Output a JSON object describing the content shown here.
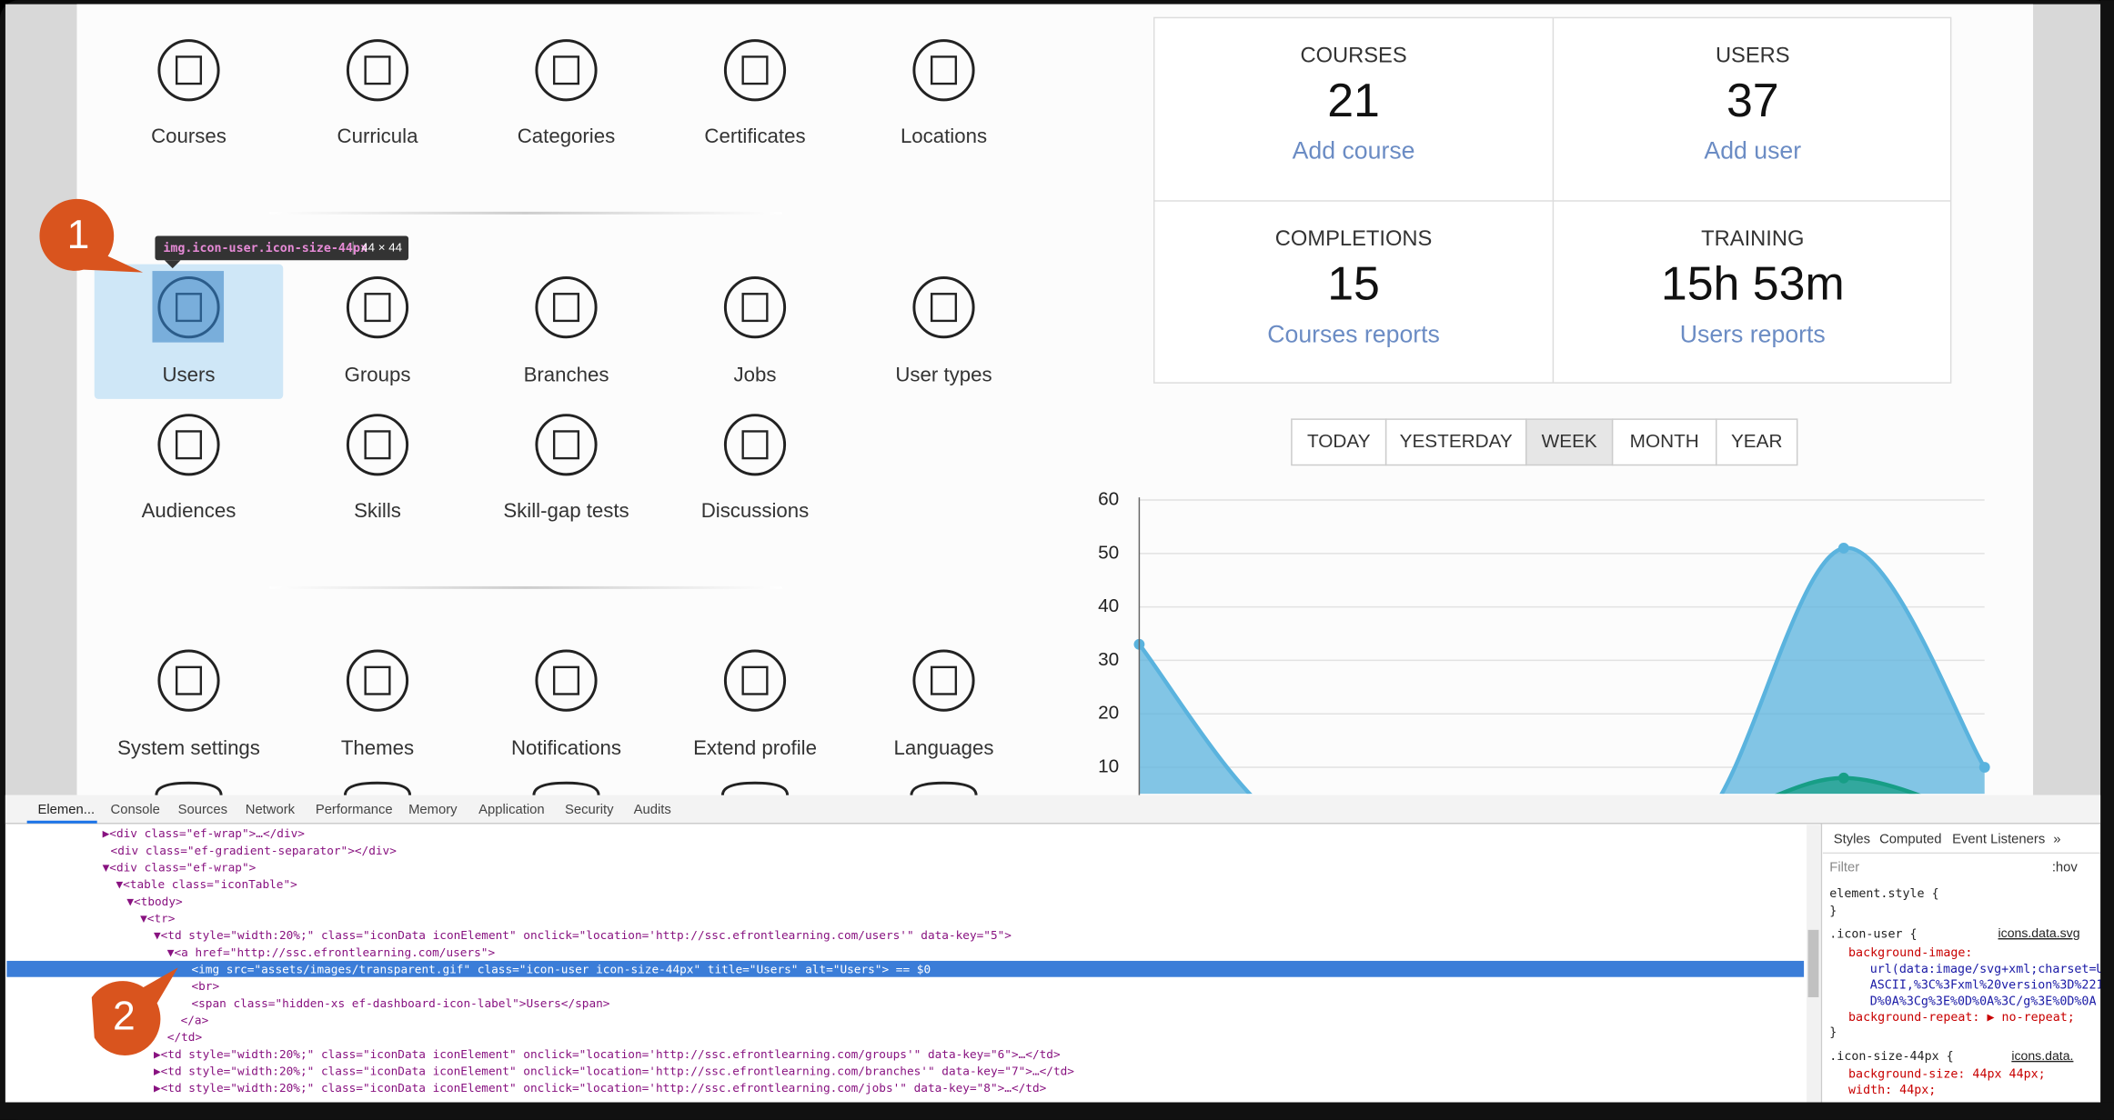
{
  "icon_grid": {
    "rows": [
      [
        "Courses",
        "Curricula",
        "Categories",
        "Certificates",
        "Locations"
      ],
      [
        "Users",
        "Groups",
        "Branches",
        "Jobs",
        "User types"
      ],
      [
        "Audiences",
        "Skills",
        "Skill-gap tests",
        "Discussions"
      ],
      [
        "System settings",
        "Themes",
        "Notifications",
        "Extend profile",
        "Languages"
      ]
    ]
  },
  "tooltip": {
    "selector": "img.icon-user.icon-size-44px",
    "size": "44 × 44"
  },
  "markers": [
    "1",
    "2"
  ],
  "stats": [
    {
      "label": "COURSES",
      "value": "21",
      "link": "Add course"
    },
    {
      "label": "USERS",
      "value": "37",
      "link": "Add user"
    },
    {
      "label": "COMPLETIONS",
      "value": "15",
      "link": "Courses reports"
    },
    {
      "label": "TRAINING",
      "value": "15h 53m",
      "link": "Users reports"
    }
  ],
  "periods": {
    "options": [
      "TODAY",
      "YESTERDAY",
      "WEEK",
      "MONTH",
      "YEAR"
    ],
    "active": 2
  },
  "chart_data": {
    "type": "area",
    "categories": [
      null,
      null,
      null,
      null,
      null,
      null,
      null
    ],
    "series": [
      {
        "color": "#5ab3de",
        "values": [
          33,
          0,
          0,
          0,
          0,
          51,
          10
        ]
      },
      {
        "color": "#179e86",
        "values": [
          0,
          0,
          0,
          0,
          0,
          8,
          0
        ]
      }
    ],
    "ylim": [
      0,
      60
    ],
    "yticks": [
      10,
      20,
      30,
      40,
      50,
      60
    ],
    "grid": true
  },
  "devtools": {
    "tabs": [
      "Elemen...",
      "Console",
      "Sources",
      "Network",
      "Performance",
      "Memory",
      "Application",
      "Security",
      "Audits"
    ],
    "dom_lines": [
      "▶<div class=\"ef-wrap\">…</div>",
      "<div class=\"ef-gradient-separator\"></div>",
      "▼<div class=\"ef-wrap\">",
      "▼<table class=\"iconTable\">",
      "▼<tbody>",
      "▼<tr>",
      "▼<td style=\"width:20%;\" class=\"iconData iconElement\" onclick=\"location='http://ssc.efrontlearning.com/users'\" data-key=\"5\">",
      "▼<a href=\"http://ssc.efrontlearning.com/users\">",
      "<img src=\"assets/images/transparent.gif\" class=\"icon-user icon-size-44px\" title=\"Users\" alt=\"Users\"> == $0",
      "<br>",
      "<span class=\"hidden-xs ef-dashboard-icon-label\">Users</span>",
      "</a>",
      "</td>",
      "▶<td style=\"width:20%;\" class=\"iconData iconElement\" onclick=\"location='http://ssc.efrontlearning.com/groups'\" data-key=\"6\">…</td>",
      "▶<td style=\"width:20%;\" class=\"iconData iconElement\" onclick=\"location='http://ssc.efrontlearning.com/branches'\" data-key=\"7\">…</td>",
      "▶<td style=\"width:20%;\" class=\"iconData iconElement\" onclick=\"location='http://ssc.efrontlearning.com/jobs'\" data-key=\"8\">…</td>"
    ],
    "selected_line": 8,
    "style_tabs": [
      "Styles",
      "Computed",
      "Event Listeners",
      "»"
    ],
    "filter": "Filter",
    "hov": ":hov",
    "style_lines": [
      "element.style {",
      "}",
      ".icon-user {",
      "background-image:",
      "url(data:image/svg+xml;charset=U",
      "ASCII,%3C%3Fxml%20version%3D%221",
      "D%0A%3Cg%3E%0D%0A%3C/g%3E%0D%0A",
      "background-repeat: ▶ no-repeat;",
      "}",
      ".icon-size-44px {",
      "background-size: 44px 44px;",
      "width: 44px;"
    ],
    "style_sources": [
      "icons.data.svg",
      "icons.data."
    ]
  }
}
